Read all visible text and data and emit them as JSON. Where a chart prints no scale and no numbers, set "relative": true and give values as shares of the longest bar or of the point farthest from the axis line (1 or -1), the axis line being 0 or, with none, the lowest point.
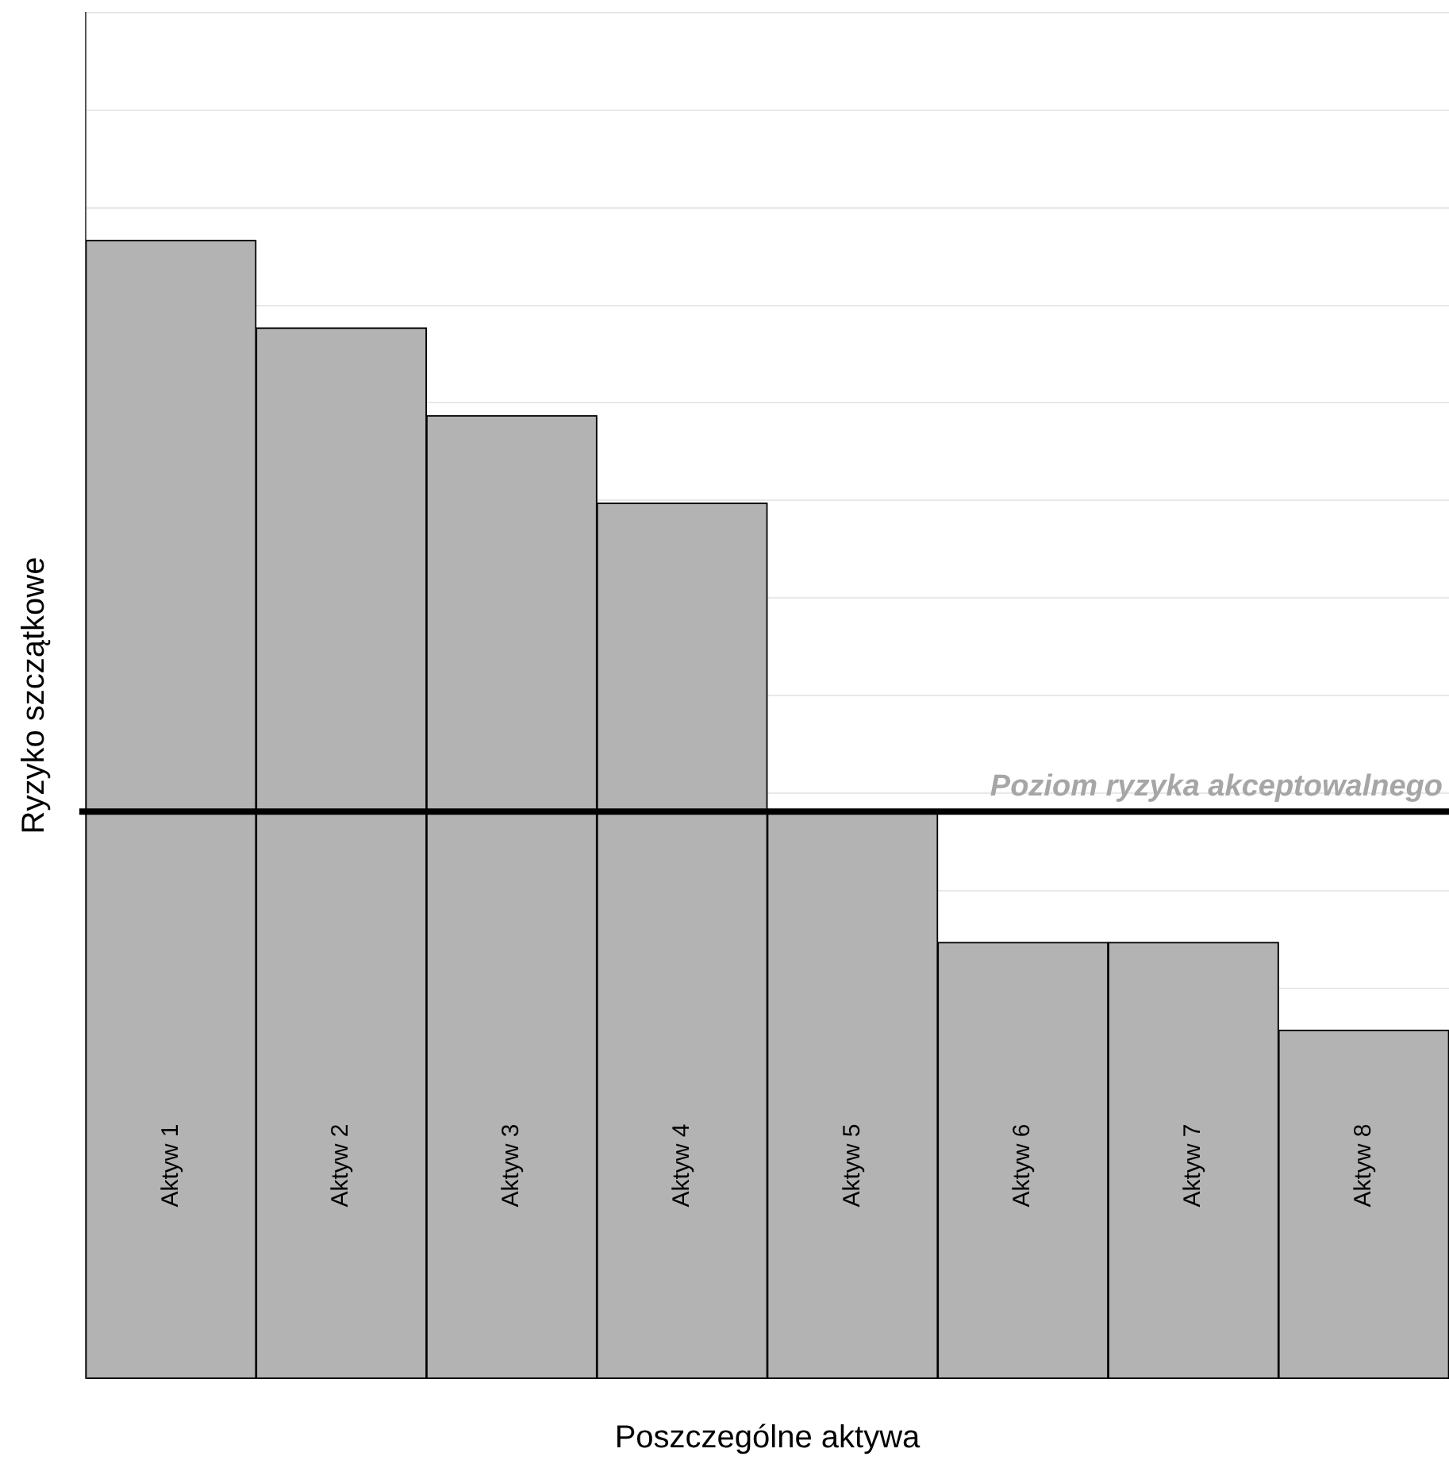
{
  "chart_data": {
    "type": "bar",
    "relative": true,
    "xlabel": "Poszczególne aktywa",
    "ylabel": "Ryzyko szczątkowe",
    "categories": [
      "Aktyw 1",
      "Aktyw 2",
      "Aktyw 3",
      "Aktyw 4",
      "Aktyw 5",
      "Aktyw 6",
      "Aktyw 7",
      "Aktyw 8"
    ],
    "values": [
      1,
      0.923,
      0.846,
      0.769,
      0.498,
      0.383,
      0.383,
      0.306
    ],
    "color": "#b3b3b3",
    "ref_lines": [
      {
        "axis": "y",
        "value": 0.498,
        "label": "Poziom ryzyka akceptowalnego",
        "color": "#000000"
      }
    ],
    "grid": "y",
    "legend": false
  }
}
